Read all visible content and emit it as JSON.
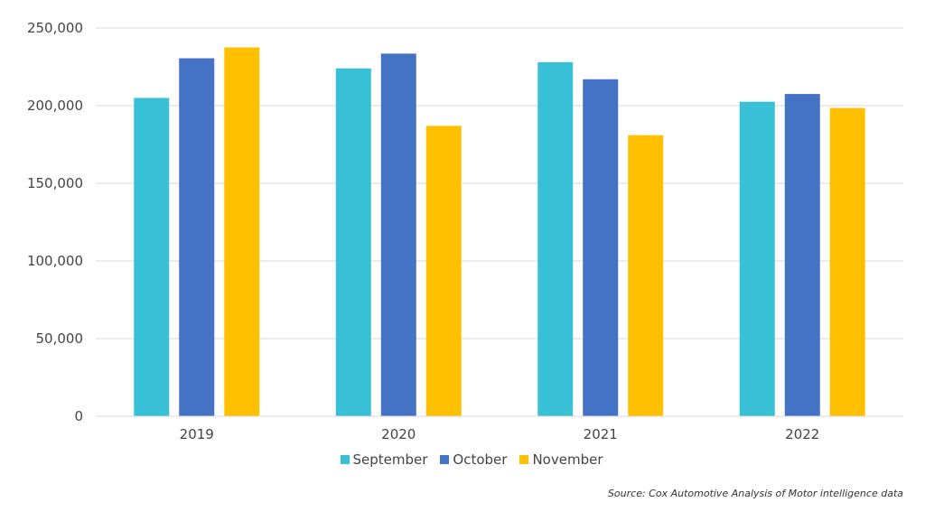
{
  "chart_data": {
    "type": "bar",
    "categories": [
      "2019",
      "2020",
      "2021",
      "2022"
    ],
    "series": [
      {
        "name": "September",
        "color": "#38c1d6",
        "values": [
          205000,
          224000,
          228000,
          202500
        ]
      },
      {
        "name": "October",
        "color": "#4472c4",
        "values": [
          230500,
          233500,
          217000,
          207500
        ]
      },
      {
        "name": "November",
        "color": "#ffc000",
        "values": [
          237500,
          187000,
          181000,
          198500
        ]
      }
    ],
    "yticks": [
      "0",
      "50,000",
      "100,000",
      "150,000",
      "200,000",
      "250,000"
    ],
    "ylim": [
      0,
      250000
    ],
    "grid": true,
    "legend_position": "bottom"
  },
  "source_note": "Source: Cox Automotive Analysis of Motor intelligence data"
}
